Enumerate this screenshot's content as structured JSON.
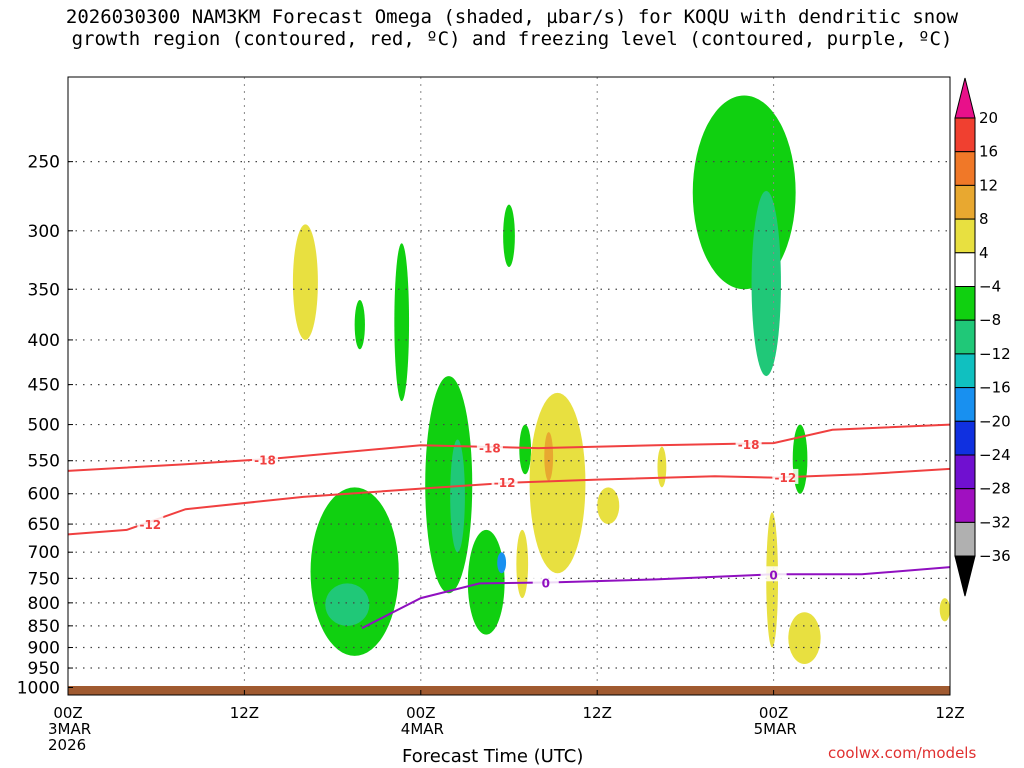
{
  "chart_data": {
    "type": "heatmap",
    "title_line1": "2026030300 NAM3KM Forecast Omega (shaded, µbar/s) for KOQU with dendritic snow",
    "title_line2": "growth region (contoured, red, ºC) and freezing level (contoured, purple, ºC)",
    "xlabel": "Forecast Time (UTC)",
    "credit": "coolwx.com/models",
    "y_ticks": [
      250,
      300,
      350,
      400,
      450,
      500,
      550,
      600,
      650,
      700,
      750,
      800,
      850,
      900,
      950,
      1000
    ],
    "y_range_hpa": [
      200,
      1020
    ],
    "y_scale": "log",
    "x_range_hours": [
      0,
      60
    ],
    "x_ticks": [
      {
        "hour": 0,
        "lines": [
          "00Z",
          "3MAR",
          "2026"
        ]
      },
      {
        "hour": 12,
        "lines": [
          "12Z"
        ]
      },
      {
        "hour": 24,
        "lines": [
          "00Z",
          "4MAR"
        ]
      },
      {
        "hour": 36,
        "lines": [
          "12Z"
        ]
      },
      {
        "hour": 48,
        "lines": [
          "00Z",
          "5MAR"
        ]
      },
      {
        "hour": 60,
        "lines": [
          "12Z"
        ]
      }
    ],
    "grid": "dotted",
    "colorbar": {
      "levels": [
        -36,
        -32,
        -28,
        -24,
        -20,
        -16,
        -12,
        -8,
        -4,
        4,
        8,
        12,
        16,
        20
      ],
      "labels": [
        "20",
        "16",
        "12",
        "8",
        "4",
        "−4",
        "−8",
        "−12",
        "−16",
        "−20",
        "−24",
        "−28",
        "−32",
        "−36"
      ],
      "colors_top_to_bottom": [
        "#e8108a",
        "#f04030",
        "#f07828",
        "#e8a830",
        "#e8e040",
        "#ffffff",
        "#10d010",
        "#20c878",
        "#10c0c0",
        "#1890f0",
        "#1030e0",
        "#7010d0",
        "#a010c0",
        "#b0b0b0",
        "#000000"
      ]
    },
    "contours": {
      "isotherm_-18": [
        [
          0,
          null
        ],
        [
          8,
          555
        ],
        [
          14,
          547
        ],
        [
          24,
          528
        ],
        [
          32,
          532
        ],
        [
          40,
          528
        ],
        [
          48,
          525
        ],
        [
          52,
          507
        ],
        [
          60,
          500
        ]
      ],
      "isotherm_-12": [
        [
          0,
          668
        ],
        [
          4,
          660
        ],
        [
          8,
          625
        ],
        [
          16,
          605
        ],
        [
          24,
          592
        ],
        [
          30,
          583
        ],
        [
          36,
          578
        ],
        [
          44,
          573
        ],
        [
          48,
          575
        ],
        [
          54,
          570
        ],
        [
          60,
          562
        ]
      ],
      "freezing_level_0": [
        [
          20,
          855
        ],
        [
          24,
          790
        ],
        [
          28,
          760
        ],
        [
          33,
          758
        ],
        [
          40,
          752
        ],
        [
          48,
          742
        ],
        [
          54,
          742
        ],
        [
          60,
          728
        ]
      ]
    },
    "contour_labels": {
      "isotherm_-18": "-18",
      "isotherm_-12": "-12",
      "freezing_level_0": "0"
    },
    "contour_colors": {
      "isotherm": "#f04040",
      "freezing": "#9010c0"
    },
    "omega_regions": [
      {
        "value": 4,
        "hour": [
          15.3,
          17.0
        ],
        "hpa": [
          295,
          400
        ]
      },
      {
        "value": -6,
        "hour": [
          19.5,
          20.2
        ],
        "hpa": [
          360,
          410
        ]
      },
      {
        "value": -6,
        "hour": [
          22.2,
          23.2
        ],
        "hpa": [
          310,
          470
        ]
      },
      {
        "value": -6,
        "hour": [
          16.5,
          22.5
        ],
        "hpa": [
          590,
          920
        ]
      },
      {
        "value": -10,
        "hour": [
          17.5,
          20.5
        ],
        "hpa": [
          760,
          850
        ]
      },
      {
        "value": -6,
        "hour": [
          24.3,
          27.5
        ],
        "hpa": [
          440,
          780
        ]
      },
      {
        "value": -10,
        "hour": [
          26.0,
          27.0
        ],
        "hpa": [
          520,
          700
        ]
      },
      {
        "value": -6,
        "hour": [
          27.2,
          29.7
        ],
        "hpa": [
          660,
          870
        ]
      },
      {
        "value": -18,
        "hour": [
          29.2,
          29.8
        ],
        "hpa": [
          700,
          740
        ]
      },
      {
        "value": -6,
        "hour": [
          29.6,
          30.4
        ],
        "hpa": [
          280,
          330
        ]
      },
      {
        "value": -6,
        "hour": [
          30.7,
          31.5
        ],
        "hpa": [
          500,
          570
        ]
      },
      {
        "value": 4,
        "hour": [
          30.5,
          31.3
        ],
        "hpa": [
          660,
          790
        ]
      },
      {
        "value": 4,
        "hour": [
          31.4,
          35.2
        ],
        "hpa": [
          460,
          740
        ]
      },
      {
        "value": 10,
        "hour": [
          32.4,
          33.0
        ],
        "hpa": [
          510,
          580
        ]
      },
      {
        "value": 4,
        "hour": [
          36.0,
          37.5
        ],
        "hpa": [
          590,
          650
        ]
      },
      {
        "value": 4,
        "hour": [
          40.1,
          40.7
        ],
        "hpa": [
          530,
          590
        ]
      },
      {
        "value": -6,
        "hour": [
          42.5,
          49.5
        ],
        "hpa": [
          210,
          350
        ]
      },
      {
        "value": -10,
        "hour": [
          46.5,
          48.5
        ],
        "hpa": [
          270,
          440
        ]
      },
      {
        "value": -6,
        "hour": [
          49.3,
          50.3
        ],
        "hpa": [
          500,
          600
        ]
      },
      {
        "value": 4,
        "hour": [
          47.5,
          48.3
        ],
        "hpa": [
          630,
          900
        ]
      },
      {
        "value": 4,
        "hour": [
          49.0,
          51.2
        ],
        "hpa": [
          820,
          940
        ]
      },
      {
        "value": 4,
        "hour": [
          59.3,
          60.0
        ],
        "hpa": [
          790,
          840
        ]
      }
    ]
  }
}
